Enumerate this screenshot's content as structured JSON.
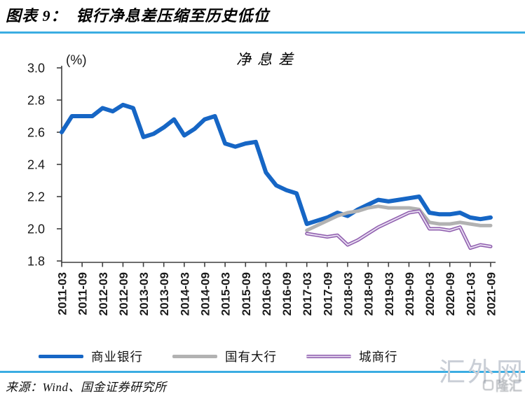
{
  "header": {
    "title": "图表 9：  银行净息差压缩至历史低位",
    "rule_color": "#3badе2"
  },
  "colors": {
    "rule": "#3BADE2",
    "axis": "#3f3f3f",
    "tick_text": "#1a1a1a"
  },
  "chart_data": {
    "type": "line",
    "title": "净息差",
    "unit_label": "(%)",
    "ylim": [
      1.8,
      3.0
    ],
    "ytick_step": 0.2,
    "yticks": [
      3.0,
      2.8,
      2.6,
      2.4,
      2.2,
      2.0,
      1.8
    ],
    "grid": false,
    "legend_position": "bottom",
    "quarters": 43,
    "x_frequency": "quarterly",
    "x_labels": [
      "2011-03",
      "2011-09",
      "2012-03",
      "2012-09",
      "2013-03",
      "2013-09",
      "2014-03",
      "2014-09",
      "2015-03",
      "2015-09",
      "2016-03",
      "2016-09",
      "2017-03",
      "2017-09",
      "2018-03",
      "2018-09",
      "2019-03",
      "2019-09",
      "2020-03",
      "2020-09",
      "2021-03",
      "2021-09"
    ],
    "x_label_every_n_quarters": 2,
    "series": [
      {
        "name": "商业银行",
        "color": "#1666C5",
        "width": 6,
        "start_index": 0,
        "values": [
          2.6,
          2.7,
          2.7,
          2.7,
          2.75,
          2.73,
          2.77,
          2.75,
          2.57,
          2.59,
          2.63,
          2.68,
          2.58,
          2.62,
          2.68,
          2.7,
          2.53,
          2.51,
          2.53,
          2.54,
          2.35,
          2.27,
          2.24,
          2.22,
          2.03,
          2.05,
          2.07,
          2.1,
          2.08,
          2.12,
          2.15,
          2.18,
          2.17,
          2.18,
          2.19,
          2.2,
          2.1,
          2.09,
          2.09,
          2.1,
          2.07,
          2.06,
          2.07
        ]
      },
      {
        "name": "国有大行",
        "color": "#B2B2B2",
        "width": 5,
        "start_index": 24,
        "values": [
          1.99,
          2.02,
          2.05,
          2.08,
          2.1,
          2.11,
          2.13,
          2.14,
          2.13,
          2.13,
          2.13,
          2.12,
          2.04,
          2.03,
          2.03,
          2.04,
          2.03,
          2.02,
          2.02
        ]
      },
      {
        "name": "城商行",
        "color": "#8E5CAD",
        "inner_color": "#E6DBF0",
        "width": 5,
        "start_index": 24,
        "values": [
          1.97,
          1.96,
          1.95,
          1.96,
          1.9,
          1.93,
          1.97,
          2.01,
          2.04,
          2.07,
          2.1,
          2.11,
          2.0,
          2.0,
          1.99,
          2.01,
          1.88,
          1.9,
          1.89
        ]
      }
    ]
  },
  "footer": {
    "source": "来源：Wind、国金证券研究所"
  },
  "watermark": {
    "site": "汇外网",
    "badge": "隆汇"
  }
}
